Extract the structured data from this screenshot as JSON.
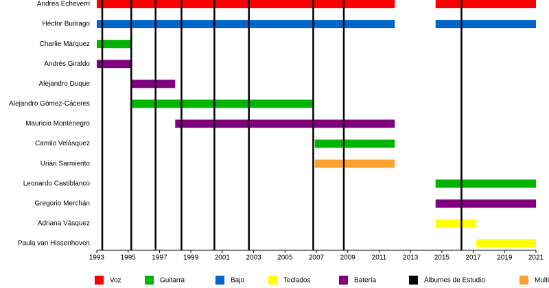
{
  "chart_data": {
    "type": "timeline",
    "xlim": [
      1993,
      2021
    ],
    "xticks": [
      1993,
      1995,
      1997,
      1999,
      2001,
      2003,
      2005,
      2007,
      2009,
      2011,
      2013,
      2015,
      2017,
      2019,
      2021
    ],
    "roles": [
      {
        "name": "Voz",
        "color": "#ff0000"
      },
      {
        "name": "Guitarra",
        "color": "#00b400"
      },
      {
        "name": "Bajo",
        "color": "#0066cc"
      },
      {
        "name": "Teclados",
        "color": "#ffff00"
      },
      {
        "name": "Batería",
        "color": "#800080"
      },
      {
        "name": "Álbumes de Estudio",
        "color": "#000000"
      },
      {
        "name": "Multi",
        "color": "#ffa030"
      }
    ],
    "members": [
      {
        "name": "Andrea Echeverri",
        "bars": [
          {
            "role": 0,
            "start": 1993,
            "end": 2012
          },
          {
            "role": 0,
            "start": 2014.6,
            "end": 2021
          }
        ]
      },
      {
        "name": "Héctor Buitrago",
        "bars": [
          {
            "role": 2,
            "start": 1993,
            "end": 2012
          },
          {
            "role": 2,
            "start": 2014.6,
            "end": 2021
          }
        ]
      },
      {
        "name": "Charlie Márquez",
        "bars": [
          {
            "role": 1,
            "start": 1993,
            "end": 1995.2
          }
        ]
      },
      {
        "name": "Andrés Giraldo",
        "bars": [
          {
            "role": 4,
            "start": 1993,
            "end": 1995.2
          }
        ]
      },
      {
        "name": "Alejandro Duque",
        "bars": [
          {
            "role": 4,
            "start": 1995.2,
            "end": 1998
          }
        ]
      },
      {
        "name": "Alejandro Gómez-Cáceres",
        "bars": [
          {
            "role": 1,
            "start": 1995.2,
            "end": 2006.8
          }
        ]
      },
      {
        "name": "Mauricio Montenegro",
        "bars": [
          {
            "role": 4,
            "start": 1998,
            "end": 2012
          }
        ]
      },
      {
        "name": "Camilo Velásquez",
        "bars": [
          {
            "role": 1,
            "start": 2006.9,
            "end": 2012
          }
        ]
      },
      {
        "name": "Urián Sarmiento",
        "bars": [
          {
            "role": 6,
            "start": 2006.9,
            "end": 2012
          }
        ]
      },
      {
        "name": "Leonardo Castiblanco",
        "bars": [
          {
            "role": 1,
            "start": 2014.6,
            "end": 2021
          }
        ]
      },
      {
        "name": "Gregorio Merchán",
        "bars": [
          {
            "role": 4,
            "start": 2014.6,
            "end": 2021
          }
        ]
      },
      {
        "name": "Adriana Vásquez",
        "bars": [
          {
            "role": 3,
            "start": 2014.6,
            "end": 2017.2
          }
        ]
      },
      {
        "name": "Paula van Hissenhoven",
        "bars": [
          {
            "role": 3,
            "start": 2017.2,
            "end": 2021
          }
        ]
      }
    ],
    "albums": [
      1993.35,
      1995.2,
      1996.75,
      1998.4,
      2000.5,
      2002.7,
      2006.8,
      2008.75,
      2016.25
    ]
  }
}
